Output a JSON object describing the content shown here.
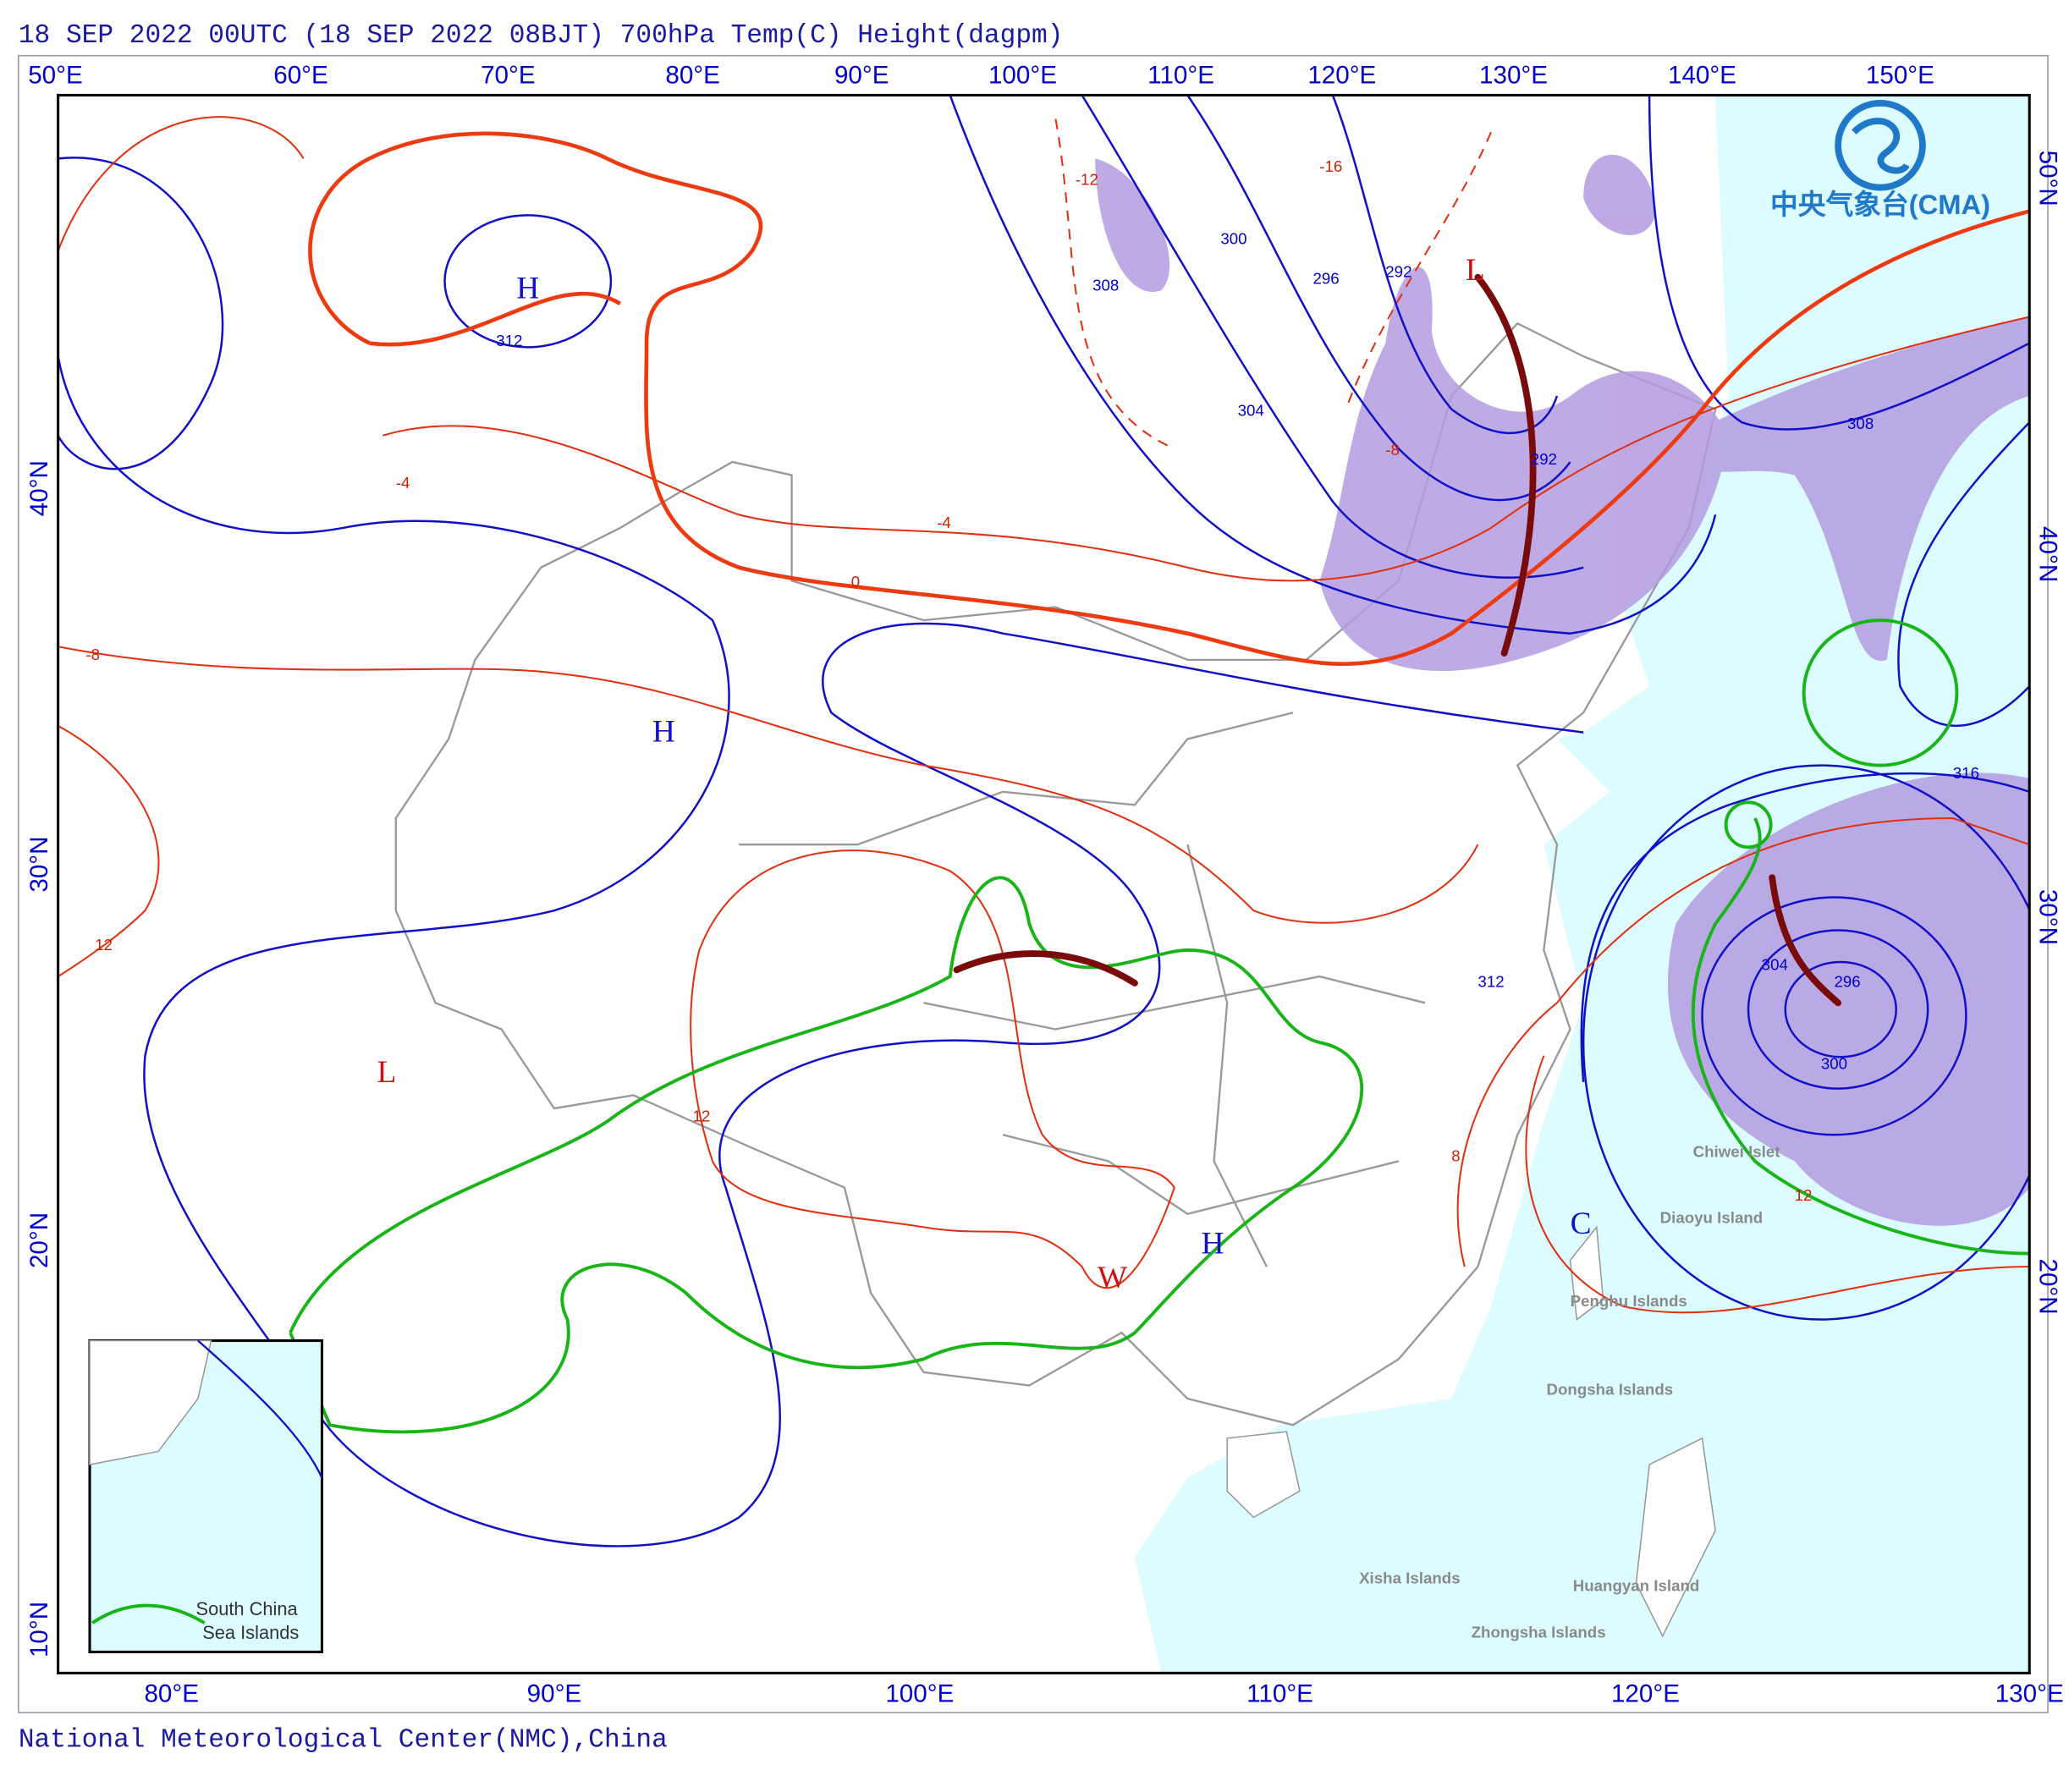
{
  "header": {
    "title": "18 SEP 2022 00UTC  (18 SEP 2022 08BJT) 700hPa Temp(C) Height(dagpm)"
  },
  "top_longitudes": [
    "50°E",
    "60°E",
    "70°E",
    "80°E",
    "90°E",
    "100°E",
    "110°E",
    "120°E",
    "130°E",
    "140°E",
    "150°E"
  ],
  "bottom_longitudes": [
    "80°E",
    "90°E",
    "100°E",
    "110°E",
    "120°E",
    "130°E"
  ],
  "left_latitudes": [
    "40°N",
    "30°N",
    "20°N",
    "10°N"
  ],
  "right_latitudes": [
    "50°N",
    "40°N",
    "30°N",
    "20°N"
  ],
  "logo": "中央气象台(CMA)",
  "systems": [
    "H",
    "H",
    "L",
    "L",
    "W",
    "H",
    "C"
  ],
  "height_labels": [
    "312",
    "308",
    "304",
    "300",
    "296",
    "292",
    "316"
  ],
  "temp_labels": [
    "0",
    "-4",
    "-8",
    "-12",
    "-16",
    "12",
    "8"
  ],
  "places": [
    "Chiwei Islet",
    "Diaoyu Island",
    "Penghu Islands",
    "Dongsha Islands",
    "Xisha Islands",
    "Huangyan Island",
    "Zhongsha Islands"
  ],
  "inset": [
    "South China",
    "Sea Islands"
  ],
  "footer": "National Meteorological Center(NMC),China"
}
